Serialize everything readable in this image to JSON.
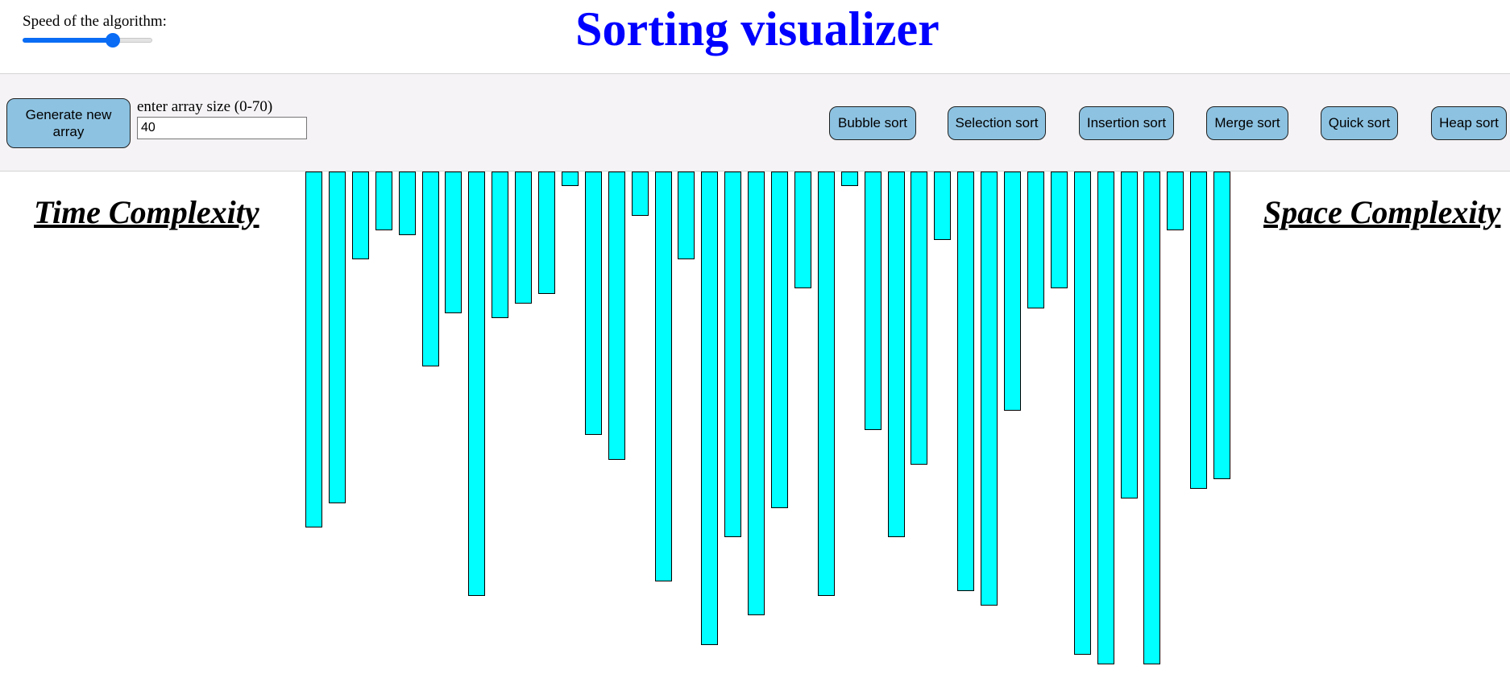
{
  "header": {
    "title": "Sorting visualizer",
    "speed_label": "Speed of the algorithm:",
    "speed_value": 0.72
  },
  "controls": {
    "generate_label": "Generate new array",
    "size_label": "enter array size (0-70)",
    "size_value": "40",
    "sort_buttons": [
      "Bubble sort",
      "Selection sort",
      "Insertion sort",
      "Merge sort",
      "Quick sort",
      "Heap sort"
    ]
  },
  "complexity": {
    "time_label": "Time Complexity",
    "space_label": "Space Complexity"
  },
  "colors": {
    "title": "#0000ff",
    "bar_fill": "#00ffff",
    "button_fill": "#8dc2e1",
    "slider_accent": "#0a6cf4",
    "toolbar_bg": "#f5f3f5"
  },
  "array": {
    "count": 40,
    "values": [
      73,
      68,
      18,
      12,
      13,
      40,
      29,
      87,
      30,
      27,
      25,
      3,
      54,
      59,
      9,
      84,
      18,
      97,
      75,
      91,
      69,
      24,
      87,
      3,
      53,
      75,
      60,
      14,
      86,
      89,
      49,
      28,
      24,
      99,
      101,
      67,
      101,
      12,
      65,
      63
    ]
  }
}
